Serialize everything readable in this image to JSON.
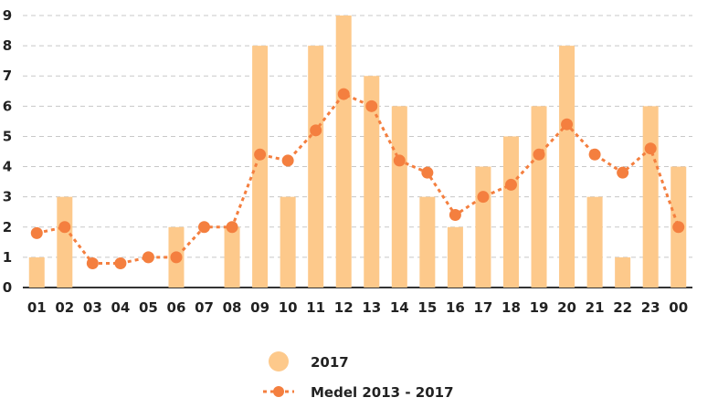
{
  "chart_data": {
    "type": "bar",
    "categories": [
      "01",
      "02",
      "03",
      "04",
      "05",
      "06",
      "07",
      "08",
      "09",
      "10",
      "11",
      "12",
      "13",
      "14",
      "15",
      "16",
      "17",
      "18",
      "19",
      "20",
      "21",
      "22",
      "23",
      "00"
    ],
    "series": [
      {
        "name": "2017",
        "type": "bar",
        "color": "#fdc98b",
        "values": [
          1,
          3,
          0,
          0,
          0,
          2,
          0,
          2,
          8,
          3,
          8,
          9,
          7,
          6,
          3,
          2,
          4,
          5,
          6,
          8,
          3,
          1,
          6,
          4
        ]
      },
      {
        "name": "Medel 2013 - 2017",
        "type": "line",
        "style": "dotted",
        "color": "#f47f3f",
        "values": [
          1.8,
          2.0,
          0.8,
          0.8,
          1.0,
          1.0,
          2.0,
          2.0,
          4.4,
          4.2,
          5.2,
          6.4,
          6.0,
          4.2,
          3.8,
          2.4,
          3.0,
          3.4,
          4.4,
          5.4,
          4.4,
          3.8,
          4.6,
          2.0
        ]
      }
    ],
    "yticks": [
      0,
      1,
      2,
      3,
      4,
      5,
      6,
      7,
      8,
      9
    ],
    "ylim": [
      0,
      9
    ],
    "grid": true,
    "legend_placement": "bottom-center"
  }
}
